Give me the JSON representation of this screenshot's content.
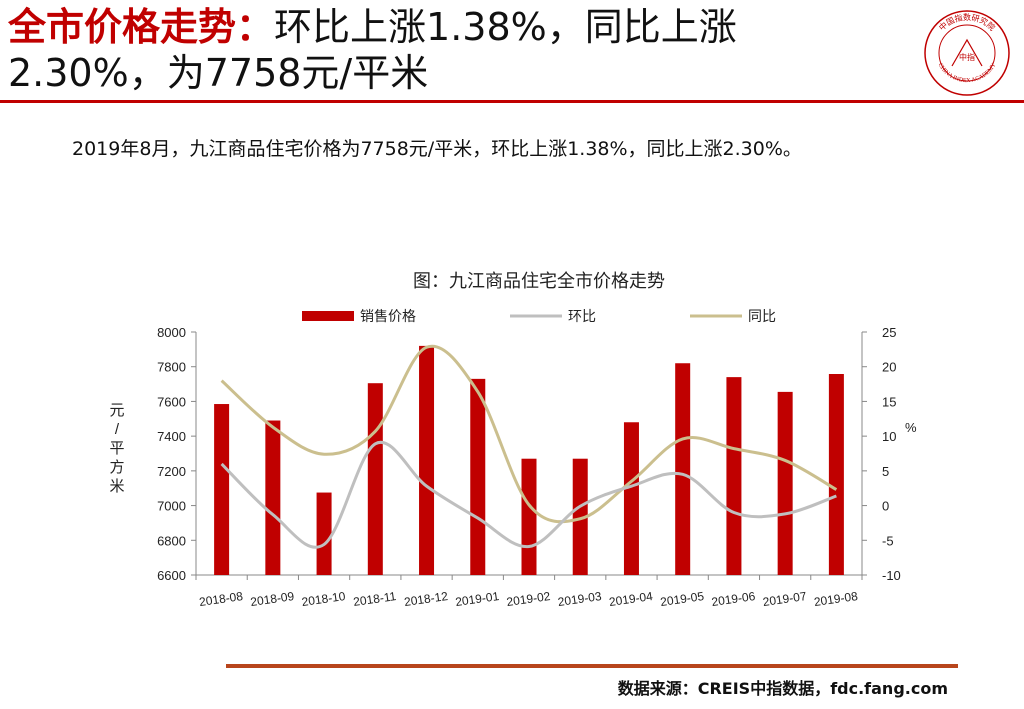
{
  "header": {
    "title_highlight": "全市价格走势：",
    "title_line1_rest": "环比上涨1.38%，同比上涨",
    "title_line2": "2.30%，为7758元/平米"
  },
  "seal": {
    "arc_text": "CHINA INDEX ACADEMY",
    "center_text": "中指",
    "top_text": "中国指数研究院"
  },
  "summary": {
    "text": "2019年8月，九江商品住宅价格为7758元/平米，环比上涨1.38%，同比上涨2.30%。"
  },
  "source": {
    "text": "数据来源：CREIS中指数据，fdc.fang.com"
  },
  "chart_data": {
    "type": "bar",
    "title": "图：九江商品住宅全市价格走势",
    "categories": [
      "2018-08",
      "2018-09",
      "2018-10",
      "2018-11",
      "2018-12",
      "2019-01",
      "2019-02",
      "2019-03",
      "2019-04",
      "2019-05",
      "2019-06",
      "2019-07",
      "2019-08"
    ],
    "series": [
      {
        "name": "销售价格",
        "type": "bar",
        "axis": "left",
        "values": [
          7585,
          7490,
          7075,
          7705,
          7920,
          7730,
          7270,
          7270,
          7480,
          7820,
          7740,
          7655,
          7758
        ]
      },
      {
        "name": "环比",
        "type": "line",
        "axis": "right",
        "values": [
          6.0,
          -1.3,
          -5.6,
          8.9,
          2.8,
          -1.8,
          -5.9,
          -0.1,
          2.8,
          4.5,
          -1.0,
          -1.2,
          1.38
        ]
      },
      {
        "name": "同比",
        "type": "line",
        "axis": "right",
        "values": [
          18.0,
          11.3,
          7.4,
          10.7,
          22.8,
          16.4,
          0.1,
          -1.9,
          3.5,
          9.6,
          8.2,
          6.5,
          2.3
        ]
      }
    ],
    "left_axis": {
      "label": "元/平方米",
      "min": 6600,
      "max": 8000,
      "ticks": [
        6600,
        6800,
        7000,
        7200,
        7400,
        7600,
        7800,
        8000
      ]
    },
    "right_axis": {
      "label": "%",
      "min": -10,
      "max": 25,
      "ticks": [
        -10,
        -5,
        0,
        5,
        10,
        15,
        20,
        25
      ]
    },
    "legend_position": "top",
    "grid": false,
    "colors": {
      "bar": "#c00000",
      "mom": "#bfbfbf",
      "yoy": "#cbbf8e"
    }
  }
}
